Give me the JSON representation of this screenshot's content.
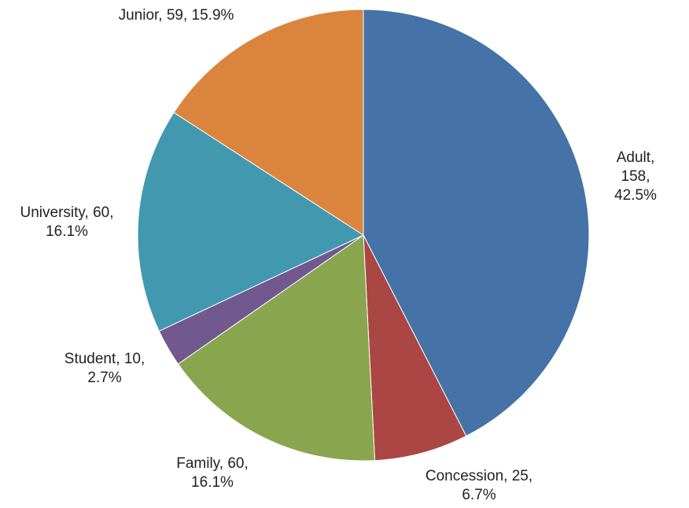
{
  "chart_data": {
    "type": "pie",
    "values": [
      158,
      25,
      60,
      10,
      60,
      59
    ],
    "value_labels": [
      "Adult, 158,\n42.5%",
      "Concession, 25,\n6.7%",
      "Family, 60,\n16.1%",
      "Student, 10,\n2.7%",
      "University, 60,\n16.1%",
      "Junior, 59, 15.9%"
    ],
    "colors": [
      "#4572a7",
      "#aa4643",
      "#89a54e",
      "#71588f",
      "#4198af",
      "#db843d"
    ]
  }
}
